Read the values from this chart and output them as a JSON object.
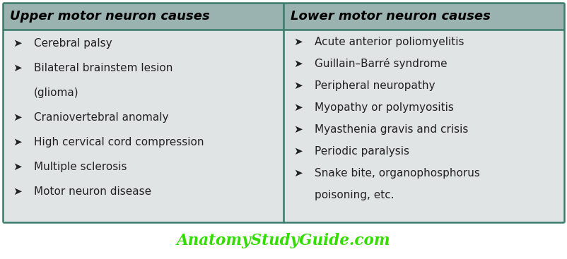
{
  "title": "AnatomyStudyGuide.com",
  "title_color": "#33dd00",
  "background_color": "#ffffff",
  "table_bg": "#e0e4e4",
  "header_bg": "#9ab3b0",
  "header_text_color": "#000000",
  "divider_color": "#3a7a6a",
  "left_header": "Upper motor neuron causes",
  "right_header": "Lower motor neuron causes",
  "left_items": [
    "Cerebral palsy",
    "Bilateral brainstem lesion\n(glioma)",
    "Craniovertebral anomaly",
    "High cervical cord compression",
    "Multiple sclerosis",
    "Motor neuron disease"
  ],
  "right_items": [
    "Acute anterior poliomyelitis",
    "Guillain–Barré syndrome",
    "Peripheral neuropathy",
    "Myopathy or polymyositis",
    "Myasthenia gravis and crisis",
    "Periodic paralysis",
    "Snake bite, organophosphorus\npoisoning, etc."
  ],
  "bullet": "➤",
  "item_fontsize": 11,
  "header_fontsize": 13,
  "title_fontsize": 15.5,
  "fig_width": 8.02,
  "fig_height": 3.67,
  "dpi": 100
}
